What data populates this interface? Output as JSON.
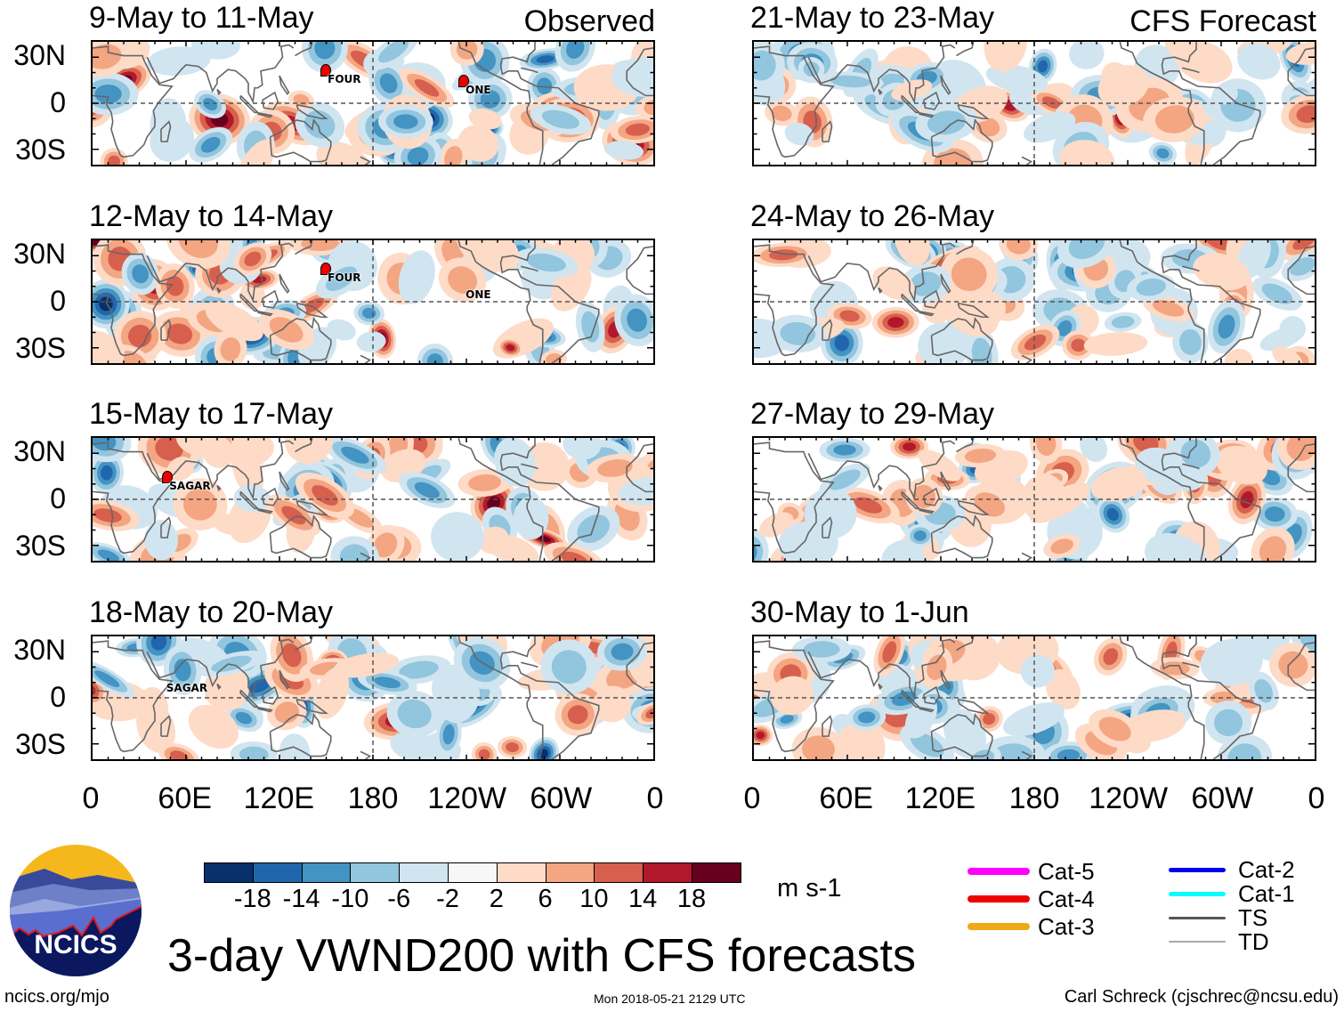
{
  "chart_data": {
    "type": "heatmap",
    "title": "3-day VWND200 with CFS forecasts",
    "units": "m s-1",
    "columns": [
      {
        "label": "Observed",
        "panels": [
          {
            "title": "9-May to 11-May",
            "seed": 11,
            "storms": [
              {
                "name": "FOUR",
                "lon": 150,
                "lat": 17,
                "marker": true
              },
              {
                "name": "ONE",
                "lon": 238,
                "lat": 10,
                "marker": true
              }
            ]
          },
          {
            "title": "12-May to 14-May",
            "seed": 23,
            "storms": [
              {
                "name": "FOUR",
                "lon": 150,
                "lat": 17,
                "marker": true
              },
              {
                "name": "ONE",
                "lon": 238,
                "lat": 6,
                "marker": false
              }
            ]
          },
          {
            "title": "15-May to 17-May",
            "seed": 37,
            "storms": [
              {
                "name": "SAGAR",
                "lon": 49,
                "lat": 10,
                "marker": true
              }
            ]
          },
          {
            "title": "18-May to 20-May",
            "seed": 41,
            "storms": [
              {
                "name": "SAGAR",
                "lon": 47,
                "lat": 8,
                "marker": false
              }
            ]
          }
        ]
      },
      {
        "label": "CFS Forecast",
        "panels": [
          {
            "title": "21-May to 23-May",
            "seed": 53,
            "storms": []
          },
          {
            "title": "24-May to 26-May",
            "seed": 67,
            "storms": []
          },
          {
            "title": "27-May to 29-May",
            "seed": 71,
            "storms": []
          },
          {
            "title": "30-May to 1-Jun",
            "seed": 89,
            "storms": []
          }
        ]
      }
    ],
    "lat_ticks": [
      "30N",
      "0",
      "30S"
    ],
    "lat_values": [
      30,
      0,
      -30
    ],
    "lat_range": [
      -40,
      40
    ],
    "lon_ticks": [
      "0",
      "60E",
      "120E",
      "180",
      "120W",
      "60W",
      "0"
    ],
    "lon_values": [
      0,
      60,
      120,
      180,
      240,
      300,
      360
    ],
    "colorbar": {
      "labels": [
        "-18",
        "-14",
        "-10",
        "-6",
        "-2",
        "2",
        "6",
        "10",
        "14",
        "18"
      ],
      "colors": [
        "#08306b",
        "#2166ac",
        "#4393c3",
        "#92c5de",
        "#d1e5f0",
        "#f7f7f7",
        "#fddbc7",
        "#f4a582",
        "#d6604d",
        "#b2182b",
        "#67001f"
      ],
      "units": "m s-1"
    }
  },
  "legend": {
    "items": [
      {
        "label": "Cat-5",
        "color": "#ff00ff",
        "width": "thick"
      },
      {
        "label": "Cat-4",
        "color": "#ee0000",
        "width": "thick"
      },
      {
        "label": "Cat-3",
        "color": "#f0a818",
        "width": "thick"
      },
      {
        "label": "Cat-2",
        "color": "#0000ee",
        "width": "medium"
      },
      {
        "label": "Cat-1",
        "color": "#00ffff",
        "width": "medium"
      },
      {
        "label": "TS",
        "color": "#555555",
        "width": "thin"
      },
      {
        "label": "TD",
        "color": "#aaaaaa",
        "width": "hair"
      }
    ]
  },
  "logo": {
    "text": "NCICS"
  },
  "footer": {
    "site": "ncics.org/mjo",
    "timestamp": "Mon 2018-05-21 2129 UTC",
    "author": "Carl Schreck (cjschrec@ncsu.edu)"
  }
}
